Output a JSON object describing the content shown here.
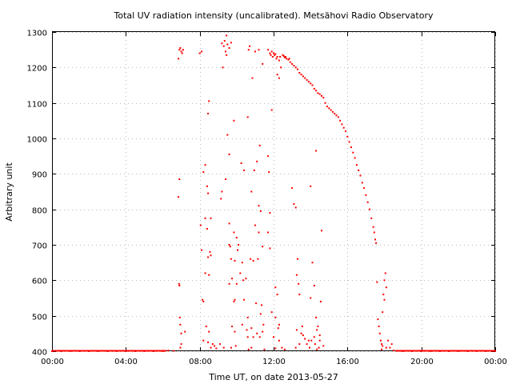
{
  "chart_data": {
    "type": "scatter",
    "title": "Total UV radiation intensity (uncalibrated). Metsähovi Radio Observatory",
    "xlabel": "Time UT, on date 2013-05-27",
    "ylabel": "Arbitrary unit",
    "x_unit": "hours UT",
    "xlim": [
      0,
      24
    ],
    "ylim": [
      400,
      1300
    ],
    "grid": true,
    "x_ticks": [
      {
        "value": 0,
        "label": "00:00"
      },
      {
        "value": 4,
        "label": "04:00"
      },
      {
        "value": 8,
        "label": "08:00"
      },
      {
        "value": 12,
        "label": "12:00"
      },
      {
        "value": 16,
        "label": "16:00"
      },
      {
        "value": 20,
        "label": "20:00"
      },
      {
        "value": 24,
        "label": "00:00"
      }
    ],
    "y_ticks": [
      400,
      500,
      600,
      700,
      800,
      900,
      1000,
      1100,
      1200,
      1300
    ],
    "marker_color": "#ff0000",
    "series": [
      {
        "points": [
          [
            0.0,
            400
          ],
          [
            0.5,
            400
          ],
          [
            1.0,
            400
          ],
          [
            1.5,
            400
          ],
          [
            2.0,
            400
          ],
          [
            2.5,
            400
          ],
          [
            3.0,
            400
          ],
          [
            3.5,
            400
          ],
          [
            4.0,
            400
          ],
          [
            4.5,
            400
          ],
          [
            5.0,
            400
          ],
          [
            5.5,
            400
          ],
          [
            6.0,
            400
          ],
          [
            6.3,
            402
          ],
          [
            6.6,
            401
          ],
          [
            6.85,
            1225
          ],
          [
            6.9,
            1250
          ],
          [
            6.95,
            1255
          ],
          [
            7.0,
            1245
          ],
          [
            7.05,
            1240
          ],
          [
            7.1,
            1250
          ],
          [
            6.9,
            885
          ],
          [
            6.85,
            835
          ],
          [
            6.88,
            590
          ],
          [
            6.9,
            585
          ],
          [
            6.92,
            495
          ],
          [
            6.95,
            475
          ],
          [
            7.0,
            450
          ],
          [
            7.2,
            455
          ],
          [
            7.0,
            420
          ],
          [
            6.95,
            410
          ],
          [
            8.0,
            1240
          ],
          [
            8.1,
            1245
          ],
          [
            8.5,
            1105
          ],
          [
            8.45,
            1070
          ],
          [
            8.3,
            925
          ],
          [
            8.2,
            905
          ],
          [
            8.4,
            865
          ],
          [
            8.45,
            845
          ],
          [
            8.6,
            775
          ],
          [
            8.3,
            775
          ],
          [
            8.4,
            745
          ],
          [
            8.55,
            680
          ],
          [
            8.6,
            670
          ],
          [
            8.05,
            755
          ],
          [
            8.1,
            685
          ],
          [
            8.45,
            665
          ],
          [
            8.3,
            620
          ],
          [
            8.5,
            615
          ],
          [
            8.15,
            545
          ],
          [
            8.2,
            540
          ],
          [
            8.35,
            470
          ],
          [
            8.5,
            455
          ],
          [
            8.2,
            430
          ],
          [
            8.45,
            425
          ],
          [
            8.7,
            420
          ],
          [
            8.6,
            410
          ],
          [
            8.8,
            415
          ],
          [
            8.9,
            408
          ],
          [
            9.2,
            1268
          ],
          [
            9.3,
            1260
          ],
          [
            9.35,
            1275
          ],
          [
            9.45,
            1290
          ],
          [
            9.5,
            1265
          ],
          [
            9.6,
            1255
          ],
          [
            9.7,
            1270
          ],
          [
            9.4,
            1245
          ],
          [
            9.45,
            1235
          ],
          [
            9.25,
            1200
          ],
          [
            9.5,
            1010
          ],
          [
            9.4,
            885
          ],
          [
            9.6,
            955
          ],
          [
            9.2,
            850
          ],
          [
            9.15,
            830
          ],
          [
            9.6,
            760
          ],
          [
            9.85,
            735
          ],
          [
            9.65,
            695
          ],
          [
            9.6,
            700
          ],
          [
            9.7,
            660
          ],
          [
            9.9,
            655
          ],
          [
            9.75,
            605
          ],
          [
            9.6,
            590
          ],
          [
            9.85,
            540
          ],
          [
            9.9,
            545
          ],
          [
            9.75,
            470
          ],
          [
            9.9,
            455
          ],
          [
            9.95,
            415
          ],
          [
            9.7,
            410
          ],
          [
            9.3,
            410
          ],
          [
            9.1,
            420
          ],
          [
            10.0,
            720
          ],
          [
            10.1,
            700
          ],
          [
            10.05,
            685
          ],
          [
            10.3,
            650
          ],
          [
            10.2,
            620
          ],
          [
            10.35,
            600
          ],
          [
            10.0,
            590
          ],
          [
            9.85,
            1050
          ],
          [
            10.25,
            930
          ],
          [
            10.4,
            910
          ],
          [
            10.6,
            1060
          ],
          [
            10.7,
            1260
          ],
          [
            10.65,
            1250
          ],
          [
            10.85,
            1170
          ],
          [
            10.8,
            850
          ],
          [
            10.95,
            910
          ],
          [
            11.0,
            755
          ],
          [
            10.75,
            660
          ],
          [
            10.5,
            605
          ],
          [
            10.9,
            655
          ],
          [
            10.4,
            545
          ],
          [
            10.6,
            495
          ],
          [
            10.3,
            475
          ],
          [
            10.55,
            460
          ],
          [
            10.8,
            465
          ],
          [
            10.6,
            440
          ],
          [
            10.9,
            440
          ],
          [
            10.8,
            410
          ],
          [
            10.65,
            405
          ],
          [
            11.2,
            1250
          ],
          [
            11.0,
            1245
          ],
          [
            11.4,
            1210
          ],
          [
            11.25,
            980
          ],
          [
            11.1,
            935
          ],
          [
            11.2,
            810
          ],
          [
            11.3,
            795
          ],
          [
            11.2,
            735
          ],
          [
            11.4,
            695
          ],
          [
            11.15,
            660
          ],
          [
            11.05,
            535
          ],
          [
            11.35,
            530
          ],
          [
            11.3,
            505
          ],
          [
            11.45,
            475
          ],
          [
            11.4,
            455
          ],
          [
            11.1,
            450
          ],
          [
            11.25,
            440
          ],
          [
            11.5,
            405
          ],
          [
            11.7,
            1250
          ],
          [
            11.8,
            1240
          ],
          [
            11.85,
            1235
          ],
          [
            11.9,
            1245
          ],
          [
            11.95,
            1230
          ],
          [
            12.0,
            1240
          ],
          [
            12.05,
            1235
          ],
          [
            12.1,
            1238
          ],
          [
            12.15,
            1225
          ],
          [
            12.2,
            1230
          ],
          [
            12.3,
            1220
          ],
          [
            12.35,
            1230
          ],
          [
            12.5,
            1235
          ],
          [
            12.55,
            1232
          ],
          [
            12.6,
            1228
          ],
          [
            12.65,
            1230
          ],
          [
            12.7,
            1225
          ],
          [
            12.8,
            1222
          ],
          [
            12.85,
            1225
          ],
          [
            12.9,
            1215
          ],
          [
            13.0,
            1210
          ],
          [
            13.1,
            1205
          ],
          [
            13.2,
            1200
          ],
          [
            13.3,
            1195
          ],
          [
            13.4,
            1185
          ],
          [
            13.5,
            1180
          ],
          [
            13.6,
            1175
          ],
          [
            13.7,
            1170
          ],
          [
            13.8,
            1165
          ],
          [
            13.9,
            1160
          ],
          [
            11.9,
            1080
          ],
          [
            12.2,
            1180
          ],
          [
            12.4,
            1200
          ],
          [
            12.3,
            1170
          ],
          [
            11.7,
            950
          ],
          [
            11.75,
            905
          ],
          [
            11.8,
            790
          ],
          [
            11.7,
            735
          ],
          [
            11.8,
            690
          ],
          [
            11.9,
            510
          ],
          [
            12.1,
            580
          ],
          [
            12.2,
            560
          ],
          [
            12.1,
            495
          ],
          [
            12.3,
            475
          ],
          [
            12.25,
            465
          ],
          [
            12.0,
            440
          ],
          [
            12.3,
            430
          ],
          [
            12.45,
            410
          ],
          [
            12.6,
            405
          ],
          [
            12.1,
            408
          ],
          [
            13.0,
            860
          ],
          [
            13.1,
            815
          ],
          [
            13.2,
            805
          ],
          [
            13.3,
            660
          ],
          [
            13.25,
            615
          ],
          [
            13.35,
            590
          ],
          [
            13.4,
            560
          ],
          [
            13.25,
            460
          ],
          [
            13.5,
            450
          ],
          [
            13.55,
            470
          ],
          [
            13.6,
            445
          ],
          [
            13.7,
            435
          ],
          [
            13.4,
            420
          ],
          [
            13.2,
            410
          ],
          [
            13.8,
            420
          ],
          [
            13.9,
            430
          ],
          [
            13.95,
            410
          ],
          [
            14.0,
            865
          ],
          [
            14.1,
            650
          ],
          [
            14.2,
            585
          ],
          [
            14.0,
            550
          ],
          [
            14.3,
            495
          ],
          [
            14.4,
            470
          ],
          [
            14.35,
            460
          ],
          [
            14.2,
            440
          ],
          [
            14.5,
            445
          ],
          [
            14.05,
            430
          ],
          [
            14.25,
            420
          ],
          [
            14.5,
            430
          ],
          [
            14.45,
            410
          ],
          [
            14.35,
            405
          ],
          [
            14.3,
            965
          ],
          [
            14.6,
            740
          ],
          [
            14.55,
            540
          ],
          [
            14.7,
            415
          ],
          [
            14.0,
            1155
          ],
          [
            14.1,
            1150
          ],
          [
            14.2,
            1140
          ],
          [
            14.3,
            1135
          ],
          [
            14.4,
            1128
          ],
          [
            14.5,
            1125
          ],
          [
            14.6,
            1120
          ],
          [
            14.7,
            1115
          ],
          [
            14.8,
            1100
          ],
          [
            14.9,
            1090
          ],
          [
            15.0,
            1085
          ],
          [
            15.1,
            1080
          ],
          [
            15.2,
            1075
          ],
          [
            15.3,
            1070
          ],
          [
            15.4,
            1065
          ],
          [
            15.5,
            1060
          ],
          [
            15.6,
            1050
          ],
          [
            15.7,
            1040
          ],
          [
            15.8,
            1030
          ],
          [
            15.9,
            1020
          ],
          [
            16.0,
            1005
          ],
          [
            16.1,
            990
          ],
          [
            16.2,
            975
          ],
          [
            16.3,
            960
          ],
          [
            16.4,
            945
          ],
          [
            16.5,
            925
          ],
          [
            16.6,
            910
          ],
          [
            16.7,
            895
          ],
          [
            16.8,
            875
          ],
          [
            16.9,
            860
          ],
          [
            17.0,
            840
          ],
          [
            17.1,
            820
          ],
          [
            17.2,
            800
          ],
          [
            17.3,
            775
          ],
          [
            17.4,
            750
          ],
          [
            17.45,
            735
          ],
          [
            17.5,
            715
          ],
          [
            17.55,
            705
          ],
          [
            17.6,
            595
          ],
          [
            17.65,
            490
          ],
          [
            17.7,
            470
          ],
          [
            17.75,
            450
          ],
          [
            17.8,
            430
          ],
          [
            17.85,
            420
          ],
          [
            17.9,
            415
          ],
          [
            17.95,
            560
          ],
          [
            18.0,
            600
          ],
          [
            18.05,
            620
          ],
          [
            18.1,
            580
          ],
          [
            18.0,
            545
          ],
          [
            17.9,
            510
          ],
          [
            17.85,
            405
          ],
          [
            18.1,
            410
          ],
          [
            18.2,
            430
          ],
          [
            18.3,
            410
          ],
          [
            18.4,
            420
          ],
          [
            18.5,
            402
          ],
          [
            18.7,
            401
          ],
          [
            19.0,
            400
          ],
          [
            19.5,
            400
          ],
          [
            20.0,
            400
          ],
          [
            20.5,
            400
          ],
          [
            21.0,
            400
          ],
          [
            21.5,
            400
          ],
          [
            22.0,
            400
          ],
          [
            22.5,
            400
          ],
          [
            23.0,
            400
          ],
          [
            23.5,
            400
          ],
          [
            24.0,
            400
          ]
        ]
      }
    ]
  }
}
